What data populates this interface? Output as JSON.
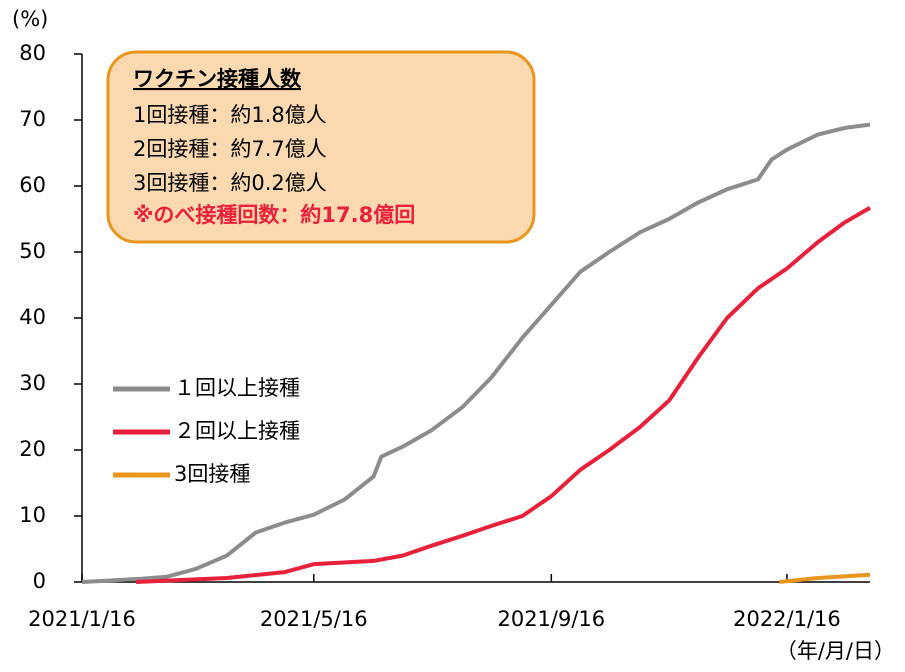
{
  "chart_data": {
    "type": "line",
    "y_label": "(%)",
    "x_label": "（年/月/日）",
    "annotation": {
      "title": "ワクチン接種人数",
      "lines": [
        "1回接種：約1.8億人",
        "2回接種：約7.7億人",
        "3回接種：約0.2億人"
      ],
      "highlight": "※のべ接種回数：約17.8億回"
    },
    "xlim": [
      "2021-01-16",
      "2022-02-28"
    ],
    "xticks": [
      {
        "value": "2021-01-16",
        "label": "2021/1/16"
      },
      {
        "value": "2021-05-16",
        "label": "2021/5/16"
      },
      {
        "value": "2021-09-16",
        "label": "2021/9/16"
      },
      {
        "value": "2022-01-16",
        "label": "2022/1/16"
      }
    ],
    "ylim": [
      0,
      80
    ],
    "yticks": [
      0,
      10,
      20,
      30,
      40,
      50,
      60,
      70,
      80
    ],
    "legend": "center-left",
    "series": [
      {
        "name": "１回以上接種",
        "color": "#8c8c8c",
        "x": [
          "2021-01-16",
          "2021-02-16",
          "2021-03-01",
          "2021-03-16",
          "2021-04-01",
          "2021-04-16",
          "2021-05-01",
          "2021-05-16",
          "2021-06-01",
          "2021-06-16",
          "2021-06-20",
          "2021-07-01",
          "2021-07-16",
          "2021-08-01",
          "2021-08-16",
          "2021-09-01",
          "2021-09-16",
          "2021-10-01",
          "2021-10-16",
          "2021-11-01",
          "2021-11-16",
          "2021-12-01",
          "2021-12-16",
          "2022-01-01",
          "2022-01-08",
          "2022-01-16",
          "2022-02-01",
          "2022-02-15",
          "2022-02-28"
        ],
        "values": [
          0,
          0.5,
          0.8,
          2,
          4,
          7.5,
          9,
          10.2,
          12.5,
          16,
          19,
          20.5,
          23,
          26.5,
          31,
          37,
          42,
          47,
          50,
          53,
          55,
          57.5,
          59.5,
          61,
          64,
          65.5,
          67.8,
          68.8,
          69.3
        ]
      },
      {
        "name": "２回以上接種",
        "color": "#e8203a",
        "x": [
          "2021-02-13",
          "2021-03-01",
          "2021-04-01",
          "2021-05-01",
          "2021-05-16",
          "2021-06-16",
          "2021-07-01",
          "2021-07-16",
          "2021-08-01",
          "2021-08-16",
          "2021-09-01",
          "2021-09-16",
          "2021-10-01",
          "2021-10-16",
          "2021-11-01",
          "2021-11-16",
          "2021-12-01",
          "2021-12-16",
          "2022-01-01",
          "2022-01-16",
          "2022-02-01",
          "2022-02-15",
          "2022-02-28"
        ],
        "values": [
          0,
          0.2,
          0.6,
          1.5,
          2.7,
          3.2,
          4,
          5.5,
          7,
          8.5,
          10,
          13,
          17,
          20,
          23.5,
          27.5,
          34,
          40,
          44.5,
          47.5,
          51.5,
          54.5,
          56.7
        ]
      },
      {
        "name": "3回接種",
        "color": "#e8961e",
        "x": [
          "2022-01-12",
          "2022-02-01",
          "2022-02-28"
        ],
        "values": [
          0,
          0.6,
          1.1
        ]
      }
    ]
  }
}
